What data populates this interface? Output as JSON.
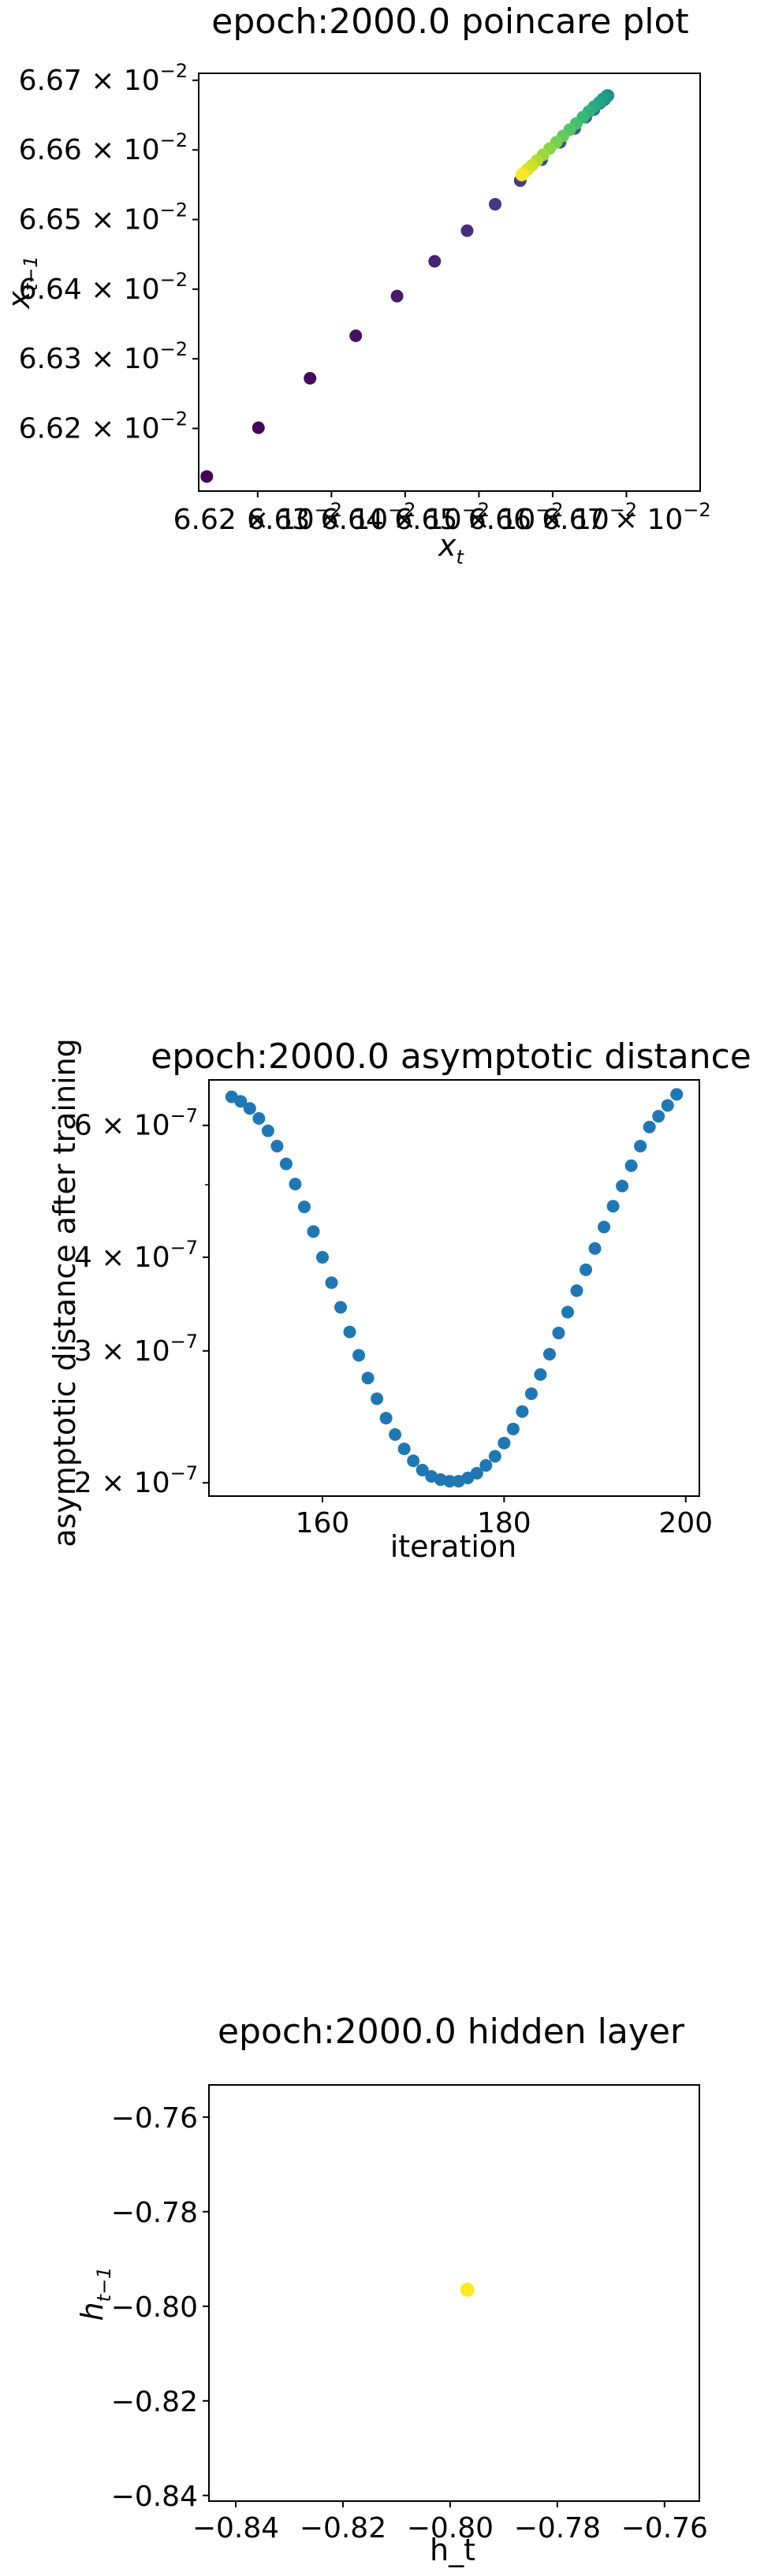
{
  "chart_data": [
    {
      "type": "scatter",
      "title": "epoch:2000.0 poincare plot",
      "xlabel": "x_t",
      "ylabel": "x_{t-1}",
      "xlim": [
        0.06612,
        0.0668
      ],
      "ylim": [
        0.06611,
        0.06671
      ],
      "x_ticks": [
        {
          "value": 0.0662,
          "mantissa": "6.62 × 10",
          "exp": "−2"
        },
        {
          "value": 0.0663,
          "mantissa": "6.63 × 10",
          "exp": "−2"
        },
        {
          "value": 0.0664,
          "mantissa": "6.64 × 10",
          "exp": "−2"
        },
        {
          "value": 0.0665,
          "mantissa": "6.65 × 10",
          "exp": "−2"
        },
        {
          "value": 0.0666,
          "mantissa": "6.66 × 10",
          "exp": "−2"
        },
        {
          "value": 0.0667,
          "mantissa": "6.67 × 10",
          "exp": "−2"
        }
      ],
      "y_ticks": [
        {
          "value": 0.0662,
          "mantissa": "6.62 × 10",
          "exp": "−2"
        },
        {
          "value": 0.0663,
          "mantissa": "6.63 × 10",
          "exp": "−2"
        },
        {
          "value": 0.0664,
          "mantissa": "6.64 × 10",
          "exp": "−2"
        },
        {
          "value": 0.0665,
          "mantissa": "6.65 × 10",
          "exp": "−2"
        },
        {
          "value": 0.0666,
          "mantissa": "6.66 × 10",
          "exp": "−2"
        },
        {
          "value": 0.0667,
          "mantissa": "6.67 × 10",
          "exp": "−2"
        }
      ],
      "colormap": "viridis",
      "grid": false,
      "points": [
        {
          "x": 0.066131,
          "y": 0.066131,
          "c": 0.0
        },
        {
          "x": 0.066201,
          "y": 0.066201,
          "c": 0.01
        },
        {
          "x": 0.066271,
          "y": 0.066272,
          "c": 0.03
        },
        {
          "x": 0.066333,
          "y": 0.066333,
          "c": 0.05
        },
        {
          "x": 0.066389,
          "y": 0.06639,
          "c": 0.07
        },
        {
          "x": 0.06644,
          "y": 0.06644,
          "c": 0.1
        },
        {
          "x": 0.066484,
          "y": 0.066484,
          "c": 0.13
        },
        {
          "x": 0.066522,
          "y": 0.066522,
          "c": 0.16
        },
        {
          "x": 0.066556,
          "y": 0.066556,
          "c": 0.19
        },
        {
          "x": 0.066585,
          "y": 0.066586,
          "c": 0.22
        },
        {
          "x": 0.06661,
          "y": 0.066611,
          "c": 0.25
        },
        {
          "x": 0.06663,
          "y": 0.066631,
          "c": 0.28
        },
        {
          "x": 0.066645,
          "y": 0.066647,
          "c": 0.31
        },
        {
          "x": 0.066656,
          "y": 0.066658,
          "c": 0.34
        },
        {
          "x": 0.066664,
          "y": 0.066667,
          "c": 0.37
        },
        {
          "x": 0.06667,
          "y": 0.066672,
          "c": 0.4
        },
        {
          "x": 0.066673,
          "y": 0.066676,
          "c": 0.43
        },
        {
          "x": 0.066675,
          "y": 0.066678,
          "c": 0.46
        },
        {
          "x": 0.066674,
          "y": 0.066678,
          "c": 0.49
        },
        {
          "x": 0.066672,
          "y": 0.066676,
          "c": 0.52
        },
        {
          "x": 0.066668,
          "y": 0.066673,
          "c": 0.55
        },
        {
          "x": 0.066663,
          "y": 0.066668,
          "c": 0.58
        },
        {
          "x": 0.066656,
          "y": 0.066662,
          "c": 0.61
        },
        {
          "x": 0.066649,
          "y": 0.066655,
          "c": 0.64
        },
        {
          "x": 0.066641,
          "y": 0.066647,
          "c": 0.67
        },
        {
          "x": 0.066632,
          "y": 0.066638,
          "c": 0.7
        },
        {
          "x": 0.066623,
          "y": 0.066629,
          "c": 0.73
        },
        {
          "x": 0.066614,
          "y": 0.06662,
          "c": 0.76
        },
        {
          "x": 0.066605,
          "y": 0.066611,
          "c": 0.79
        },
        {
          "x": 0.066596,
          "y": 0.066602,
          "c": 0.82
        },
        {
          "x": 0.066587,
          "y": 0.066593,
          "c": 0.85
        },
        {
          "x": 0.066579,
          "y": 0.066585,
          "c": 0.88
        },
        {
          "x": 0.066572,
          "y": 0.066578,
          "c": 0.91
        },
        {
          "x": 0.066566,
          "y": 0.066572,
          "c": 0.94
        },
        {
          "x": 0.066561,
          "y": 0.066567,
          "c": 0.97
        },
        {
          "x": 0.066558,
          "y": 0.066564,
          "c": 1.0
        }
      ]
    },
    {
      "type": "scatter",
      "title": "epoch:2000.0 asymptotic distance",
      "xlabel": "iteration",
      "ylabel": "asymptotic distance after training",
      "yscale": "log",
      "xlim": [
        147.5,
        201.5
      ],
      "ylim": [
        1.92e-07,
        6.9e-07
      ],
      "x_ticks": [
        {
          "value": 160,
          "label": "160"
        },
        {
          "value": 180,
          "label": "180"
        },
        {
          "value": 200,
          "label": "200"
        }
      ],
      "y_ticks": [
        {
          "value": 2e-07,
          "mantissa": "2 × 10",
          "exp": "−7"
        },
        {
          "value": 3e-07,
          "mantissa": "3 × 10",
          "exp": "−7"
        },
        {
          "value": 4e-07,
          "mantissa": "4 × 10",
          "exp": "−7"
        },
        {
          "value": 6e-07,
          "mantissa": "6 × 10",
          "exp": "−7"
        }
      ],
      "color": "#1f77b4",
      "grid": false,
      "x": [
        150,
        151,
        152,
        153,
        154,
        155,
        156,
        157,
        158,
        159,
        160,
        161,
        162,
        163,
        164,
        165,
        166,
        167,
        168,
        169,
        170,
        171,
        172,
        173,
        174,
        175,
        176,
        177,
        178,
        179,
        180,
        181,
        182,
        183,
        184,
        185,
        186,
        187,
        188,
        189,
        190,
        191,
        192,
        193,
        194,
        195,
        196,
        197,
        198,
        199
      ],
      "y": [
        6.55e-07,
        6.46e-07,
        6.32e-07,
        6.13e-07,
        5.9e-07,
        5.63e-07,
        5.33e-07,
        5.01e-07,
        4.67e-07,
        4.33e-07,
        4e-07,
        3.7e-07,
        3.43e-07,
        3.18e-07,
        2.96e-07,
        2.76e-07,
        2.59e-07,
        2.44e-07,
        2.32e-07,
        2.22e-07,
        2.14e-07,
        2.08e-07,
        2.04e-07,
        2.02e-07,
        2.01e-07,
        2.01e-07,
        2.03e-07,
        2.06e-07,
        2.11e-07,
        2.17e-07,
        2.26e-07,
        2.36e-07,
        2.49e-07,
        2.63e-07,
        2.79e-07,
        2.97e-07,
        3.17e-07,
        3.38e-07,
        3.61e-07,
        3.85e-07,
        4.11e-07,
        4.39e-07,
        4.68e-07,
        4.98e-07,
        5.3e-07,
        5.63e-07,
        5.97e-07,
        6.17e-07,
        6.38e-07,
        6.6e-07
      ]
    },
    {
      "type": "scatter",
      "title": "epoch:2000.0 hidden layer",
      "xlabel": "h_t",
      "ylabel": "h_{t-1}",
      "xlim": [
        -0.845,
        -0.7535
      ],
      "ylim": [
        -0.8412,
        -0.7532
      ],
      "x_ticks": [
        {
          "value": -0.84,
          "label": "−0.84"
        },
        {
          "value": -0.82,
          "label": "−0.82"
        },
        {
          "value": -0.8,
          "label": "−0.80"
        },
        {
          "value": -0.78,
          "label": "−0.78"
        },
        {
          "value": -0.76,
          "label": "−0.76"
        }
      ],
      "y_ticks": [
        {
          "value": -0.84,
          "label": "−0.84"
        },
        {
          "value": -0.82,
          "label": "−0.82"
        },
        {
          "value": -0.8,
          "label": "−0.80"
        },
        {
          "value": -0.78,
          "label": "−0.78"
        },
        {
          "value": -0.76,
          "label": "−0.76"
        }
      ],
      "color": "#fde725",
      "grid": false,
      "points": [
        {
          "x": -0.7968,
          "y": -0.7965
        }
      ]
    }
  ]
}
